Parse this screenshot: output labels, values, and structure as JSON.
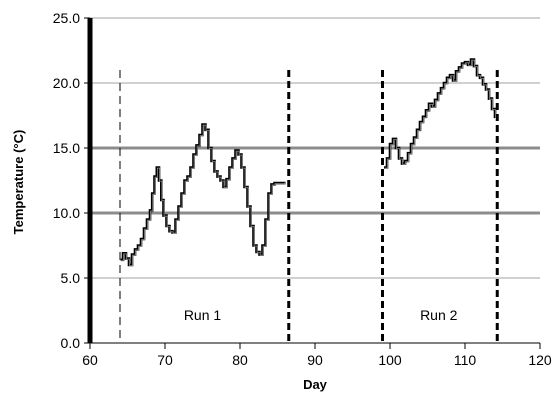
{
  "chart_data": {
    "type": "line",
    "title": "",
    "xlabel": "Day",
    "ylabel": "Temperature (°C)",
    "xlim": [
      60,
      120
    ],
    "ylim": [
      0,
      25
    ],
    "x_ticks": [
      "60",
      "70",
      "80",
      "90",
      "100",
      "110",
      "120"
    ],
    "y_ticks": [
      "0.0",
      "5.0",
      "10.0",
      "15.0",
      "20.0",
      "25.0"
    ],
    "grid": "horizontal",
    "threshold_lines": [
      10,
      15
    ],
    "dividers": [
      {
        "x": 64,
        "style": "thin-dashed"
      },
      {
        "x": 86.5,
        "style": "thick-dashed"
      },
      {
        "x": 99,
        "style": "thick-dashed"
      },
      {
        "x": 114.3,
        "style": "thick-dashed"
      }
    ],
    "annotations": [
      {
        "text": "Run 1",
        "x": 75,
        "y": 1.4
      },
      {
        "text": "Run 2",
        "x": 106.5,
        "y": 1.4
      }
    ],
    "series": [
      {
        "values_x": [
          64.1,
          64.4,
          64.8,
          65.2,
          65.6,
          66.0,
          66.4,
          66.8,
          67.2,
          67.6,
          68.0,
          68.3,
          68.6,
          68.9,
          69.2,
          69.5,
          69.8,
          70.2,
          70.6,
          71.0,
          71.4,
          71.8,
          72.2,
          72.6,
          73.0,
          73.4,
          73.8,
          74.2,
          74.6,
          75.0,
          75.4,
          75.8,
          76.2,
          76.6,
          77.0,
          77.4,
          77.8,
          78.2,
          78.6,
          79.0,
          79.4,
          79.8,
          80.2,
          80.6,
          81.0,
          81.4,
          81.8,
          82.2,
          82.6,
          83.0,
          83.4,
          83.8,
          84.2,
          84.6,
          85.0,
          85.4,
          85.9
        ],
        "values_y": [
          6.4,
          6.9,
          6.5,
          6.0,
          6.8,
          7.2,
          7.5,
          8.0,
          8.8,
          9.5,
          10.2,
          11.5,
          12.8,
          13.5,
          12.5,
          11.0,
          9.8,
          9.0,
          8.6,
          8.5,
          9.5,
          10.5,
          11.5,
          12.5,
          12.8,
          13.5,
          14.5,
          15.2,
          16.0,
          16.8,
          16.4,
          15.0,
          14.0,
          13.2,
          12.8,
          12.5,
          12.0,
          12.6,
          13.5,
          14.2,
          14.8,
          14.5,
          13.5,
          12.0,
          10.5,
          9.0,
          7.5,
          7.0,
          6.8,
          7.5,
          9.5,
          11.5,
          12.2,
          12.3,
          12.3,
          12.3,
          12.4
        ]
      },
      {
        "values_x": [
          99.2,
          99.6,
          100.0,
          100.4,
          100.8,
          101.2,
          101.6,
          102.0,
          102.4,
          102.8,
          103.2,
          103.6,
          104.0,
          104.4,
          104.8,
          105.2,
          105.6,
          106.0,
          106.4,
          106.8,
          107.2,
          107.6,
          108.0,
          108.4,
          108.8,
          109.2,
          109.6,
          110.0,
          110.4,
          110.8,
          111.2,
          111.6,
          112.0,
          112.4,
          112.8,
          113.2,
          113.6,
          114.0
        ],
        "values_y": [
          13.5,
          14.2,
          15.3,
          15.7,
          15.0,
          14.2,
          13.8,
          14.0,
          14.6,
          15.3,
          15.8,
          16.4,
          17.0,
          17.4,
          17.9,
          18.4,
          18.2,
          18.7,
          19.2,
          19.6,
          20.0,
          20.4,
          20.6,
          20.2,
          20.9,
          21.2,
          21.5,
          21.6,
          21.4,
          21.8,
          21.3,
          20.6,
          20.4,
          19.9,
          19.5,
          18.8,
          18.0,
          17.3
        ]
      }
    ]
  }
}
